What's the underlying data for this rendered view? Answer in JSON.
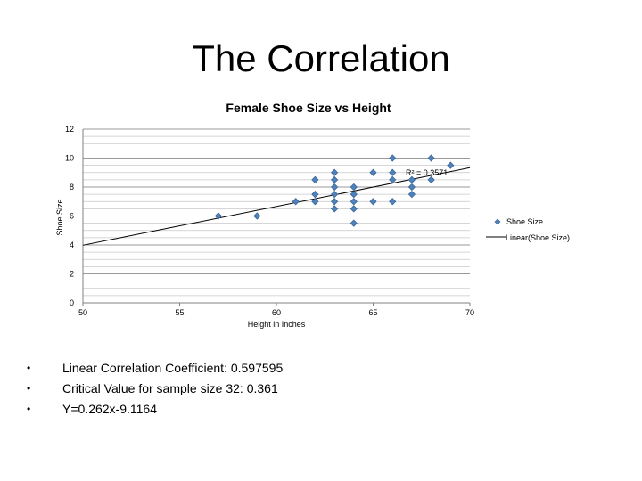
{
  "slide": {
    "title": "The Correlation",
    "bullets": [
      "Linear Correlation Coefficient: 0.597595",
      "Critical Value for sample size 32:  0.361",
      "Y=0.262x-9.1164"
    ]
  },
  "chart_data": {
    "type": "scatter",
    "title": "Female Shoe Size vs Height",
    "xlabel": "Height in Inches",
    "ylabel": "Shoe Size",
    "xlim": [
      50,
      70
    ],
    "ylim": [
      0,
      12
    ],
    "xticks": [
      50,
      55,
      60,
      65,
      70
    ],
    "yticks": [
      0,
      2,
      4,
      6,
      8,
      10,
      12
    ],
    "grid": true,
    "legend_position": "right",
    "r_squared_label": "R² = 0.3571",
    "trendline": {
      "name": "Linear(Shoe Size)",
      "x": [
        50,
        70
      ]
    },
    "series": [
      {
        "name": "Shoe Size",
        "color": "#4f81bd",
        "points": [
          [
            57,
            6
          ],
          [
            59,
            6
          ],
          [
            61,
            7
          ],
          [
            62,
            8.5
          ],
          [
            62,
            7.5
          ],
          [
            62,
            7
          ],
          [
            63,
            9
          ],
          [
            63,
            8.5
          ],
          [
            63,
            8
          ],
          [
            63,
            7.5
          ],
          [
            63,
            7
          ],
          [
            63,
            6.5
          ],
          [
            64,
            8
          ],
          [
            64,
            7.5
          ],
          [
            64,
            7
          ],
          [
            64,
            6.5
          ],
          [
            64,
            5.5
          ],
          [
            65,
            9
          ],
          [
            65,
            7
          ],
          [
            66,
            10
          ],
          [
            66,
            9
          ],
          [
            66,
            8.5
          ],
          [
            66,
            7
          ],
          [
            67,
            8.5
          ],
          [
            67,
            8
          ],
          [
            67,
            7.5
          ],
          [
            68,
            10
          ],
          [
            68,
            8.5
          ],
          [
            69,
            9.5
          ]
        ]
      }
    ]
  }
}
